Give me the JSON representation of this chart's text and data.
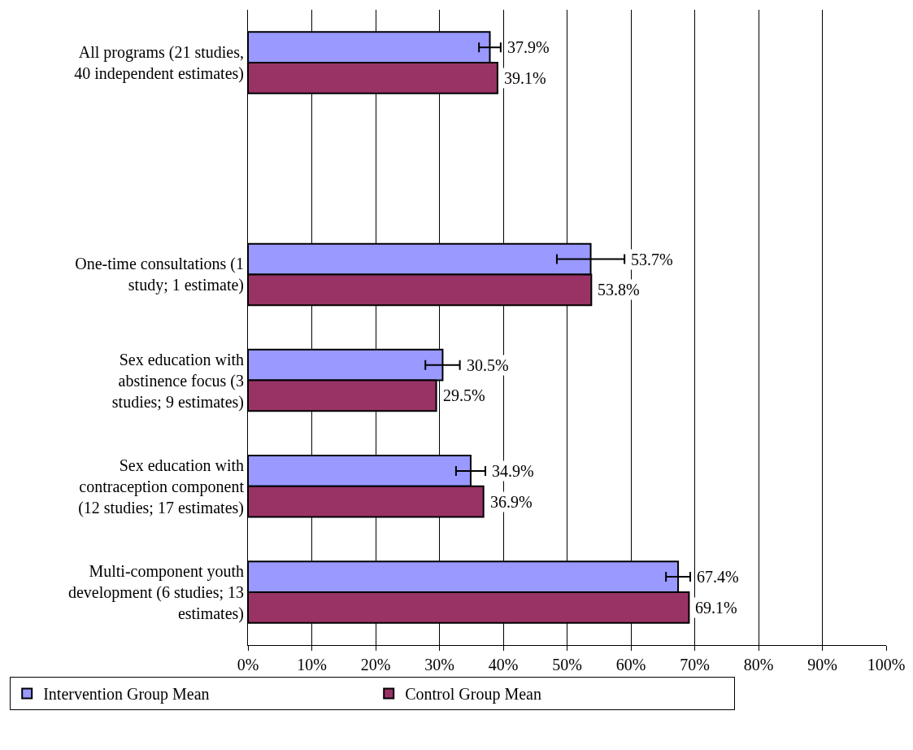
{
  "chart_data": {
    "type": "bar",
    "orientation": "horizontal",
    "categories": [
      "All programs (21 studies, 40 independent estimates)",
      null,
      "One-time consultations (1 study; 1 estimate)",
      "Sex education with abstinence focus (3 studies; 9 estimates)",
      "Sex education with contraception component (12 studies; 17 estimates)",
      "Multi-component youth development (6 studies; 13 estimates)"
    ],
    "series": [
      {
        "name": "Intervention Group Mean",
        "color": "#9999ff",
        "values": [
          37.9,
          null,
          53.7,
          30.5,
          34.9,
          67.4
        ],
        "errors": [
          1.7,
          null,
          5.3,
          2.7,
          2.3,
          1.9
        ],
        "value_labels": [
          "37.9%",
          null,
          "53.7%",
          "30.5%",
          "34.9%",
          "67.4%"
        ]
      },
      {
        "name": "Control Group Mean",
        "color": "#993366",
        "values": [
          39.1,
          null,
          53.8,
          29.5,
          36.9,
          69.1
        ],
        "value_labels": [
          "39.1%",
          null,
          "53.8%",
          "29.5%",
          "36.9%",
          "69.1%"
        ]
      }
    ],
    "xlim": [
      0,
      100
    ],
    "xticks": [
      {
        "value": 0,
        "label": "0%"
      },
      {
        "value": 10,
        "label": "10%"
      },
      {
        "value": 20,
        "label": "20%"
      },
      {
        "value": 30,
        "label": "30%"
      },
      {
        "value": 40,
        "label": "40%"
      },
      {
        "value": 50,
        "label": "50%"
      },
      {
        "value": 60,
        "label": "60%"
      },
      {
        "value": 70,
        "label": "70%"
      },
      {
        "value": 80,
        "label": "80%"
      },
      {
        "value": 90,
        "label": "90%"
      },
      {
        "value": 100,
        "label": "100%"
      }
    ],
    "grid": "x",
    "legend": "bottom"
  }
}
